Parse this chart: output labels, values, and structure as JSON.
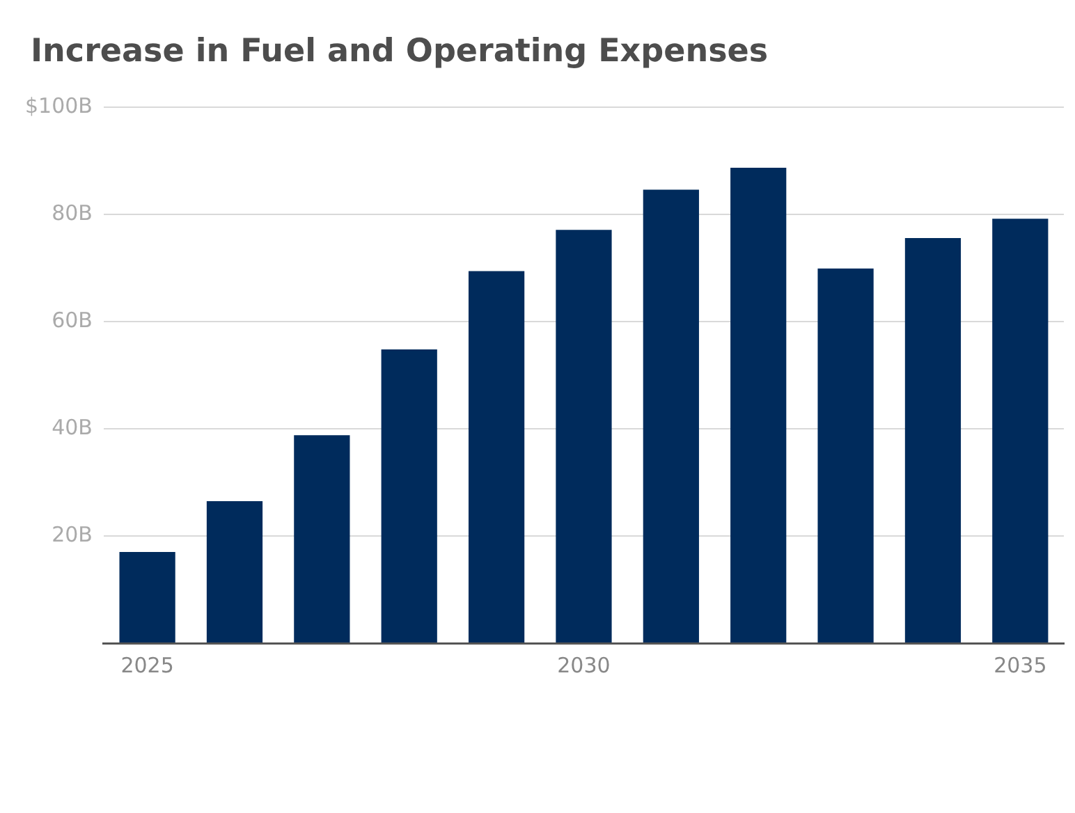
{
  "chart_data": {
    "type": "bar",
    "title": "Increase in Fuel and Operating Expenses",
    "categories": [
      "2025",
      null,
      null,
      null,
      null,
      "2030",
      null,
      null,
      null,
      null,
      "2035"
    ],
    "values": [
      17,
      26.5,
      38.8,
      54.8,
      69.4,
      77.1,
      84.6,
      88.7,
      69.9,
      75.6,
      79.2
    ],
    "color": "#002b5c",
    "ylim": [
      0,
      100
    ],
    "yticks": [
      {
        "value": 0,
        "label": null
      },
      {
        "value": 20,
        "label": "20B"
      },
      {
        "value": 40,
        "label": "40B"
      },
      {
        "value": 60,
        "label": "60B"
      },
      {
        "value": 80,
        "label": "80B"
      },
      {
        "value": 100,
        "label": "$100B"
      }
    ],
    "grid": "y",
    "legend": false
  }
}
